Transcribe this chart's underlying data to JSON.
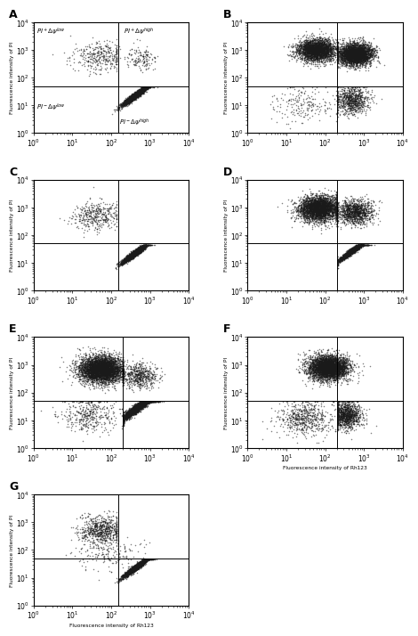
{
  "panels": [
    {
      "label": "A",
      "xlabel": "",
      "ylabel": "Fluorescence intensity of PI",
      "xlim": [
        1.0,
        10000.0
      ],
      "ylim": [
        1.0,
        10000.0
      ],
      "hline": 50,
      "vline": 150,
      "annot_quadrants": true,
      "pattern": "A"
    },
    {
      "label": "B",
      "xlabel": "",
      "ylabel": "Fluorescence intensity of PI",
      "xlim": [
        1.0,
        10000.0
      ],
      "ylim": [
        1.0,
        10000.0
      ],
      "hline": 50,
      "vline": 200,
      "annot_quadrants": false,
      "pattern": "B"
    },
    {
      "label": "C",
      "xlabel": "",
      "ylabel": "Fluorescence intensity of PI",
      "xlim": [
        1.0,
        10000.0
      ],
      "ylim": [
        1.0,
        10000.0
      ],
      "hline": 50,
      "vline": 150,
      "annot_quadrants": false,
      "pattern": "C"
    },
    {
      "label": "D",
      "xlabel": "",
      "ylabel": "Fluorescence intensity of PI",
      "xlim": [
        1.0,
        10000.0
      ],
      "ylim": [
        1.0,
        10000.0
      ],
      "hline": 50,
      "vline": 200,
      "annot_quadrants": false,
      "pattern": "D"
    },
    {
      "label": "E",
      "xlabel": "",
      "ylabel": "Fluorescence intensity of PI",
      "xlim": [
        1.0,
        10000.0
      ],
      "ylim": [
        1.0,
        10000.0
      ],
      "hline": 50,
      "vline": 200,
      "annot_quadrants": false,
      "pattern": "E"
    },
    {
      "label": "F",
      "xlabel": "Fluorescence intensity of Rh123",
      "ylabel": "Fluorescence intensity of PI",
      "xlim": [
        1.0,
        10000.0
      ],
      "ylim": [
        1.0,
        10000.0
      ],
      "hline": 50,
      "vline": 200,
      "annot_quadrants": false,
      "pattern": "F"
    },
    {
      "label": "G",
      "xlabel": "Fluorescence intensity of Rh123",
      "ylabel": "Fluorescence intensity of PI",
      "xlim": [
        1.0,
        10000.0
      ],
      "ylim": [
        1.0,
        10000.0
      ],
      "hline": 50,
      "vline": 150,
      "annot_quadrants": false,
      "pattern": "G"
    }
  ],
  "dot_color": "#1a1a1a",
  "dot_size": 1.2,
  "dot_alpha": 0.55,
  "bg_color": "#ffffff",
  "label_fontsize": 9,
  "tick_fontsize": 5.5,
  "annot_fontsize": 5.0
}
